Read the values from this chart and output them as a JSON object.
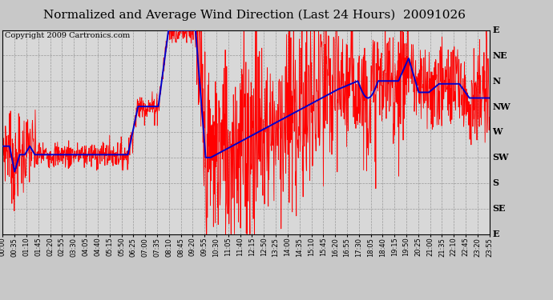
{
  "title": "Normalized and Average Wind Direction (Last 24 Hours)  20091026",
  "copyright": "Copyright 2009 Cartronics.com",
  "background_color": "#c8c8c8",
  "plot_bg_color": "#d8d8d8",
  "y_labels": [
    "E",
    "NE",
    "N",
    "NW",
    "W",
    "SW",
    "S",
    "SE",
    "E"
  ],
  "y_values": [
    360,
    315,
    270,
    225,
    180,
    135,
    90,
    45,
    0
  ],
  "ylim": [
    0,
    360
  ],
  "x_labels": [
    "00:00",
    "00:35",
    "01:10",
    "01:45",
    "02:20",
    "02:55",
    "03:30",
    "04:05",
    "04:40",
    "05:15",
    "05:50",
    "06:25",
    "07:00",
    "07:35",
    "08:10",
    "08:45",
    "09:20",
    "09:55",
    "10:30",
    "11:05",
    "11:40",
    "12:15",
    "12:50",
    "13:25",
    "14:00",
    "14:35",
    "15:10",
    "15:45",
    "16:20",
    "16:55",
    "17:30",
    "18:05",
    "18:40",
    "19:15",
    "19:50",
    "20:25",
    "21:00",
    "21:35",
    "22:10",
    "22:45",
    "23:20",
    "23:55"
  ],
  "grid_color": "#999999",
  "red_color": "#ff0000",
  "blue_color": "#0000cc",
  "title_fontsize": 11,
  "copyright_fontsize": 7,
  "tick_fontsize": 6,
  "ylabel_fontsize": 8,
  "blue_seed": 0,
  "red_seed": 7
}
